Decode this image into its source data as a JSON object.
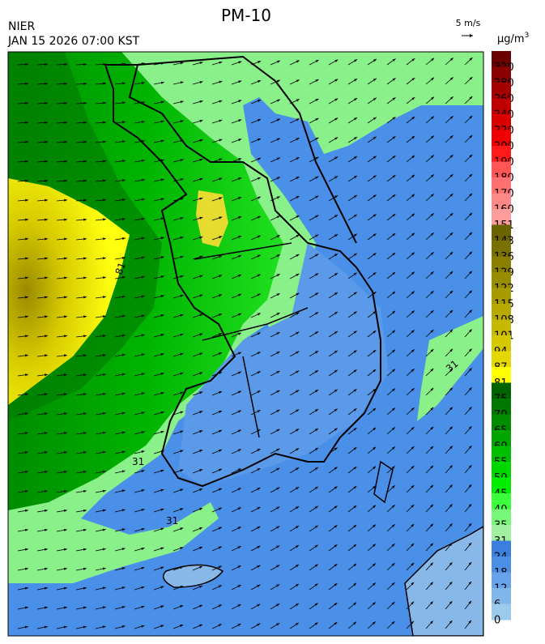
{
  "header": {
    "title": "PM-10",
    "agency": "NIER",
    "datetime": "JAN 15 2026 07:00 KST"
  },
  "wind_legend": {
    "label": "5 m/s"
  },
  "colorbar": {
    "unit": "μg/m",
    "unit_superscript": "3",
    "items": [
      {
        "label": "320",
        "color": "#6b0000"
      },
      {
        "label": "280",
        "color": "#8b0000"
      },
      {
        "label": "260",
        "color": "#a50000"
      },
      {
        "label": "240",
        "color": "#c00000"
      },
      {
        "label": "220",
        "color": "#da0000"
      },
      {
        "label": "200",
        "color": "#f00000"
      },
      {
        "label": "190",
        "color": "#ff1a1a"
      },
      {
        "label": "180",
        "color": "#ff5555"
      },
      {
        "label": "170",
        "color": "#ff7070"
      },
      {
        "label": "160",
        "color": "#ff8888"
      },
      {
        "label": "151",
        "color": "#ff9c9c"
      },
      {
        "label": "143",
        "color": "#6b6300"
      },
      {
        "label": "136",
        "color": "#7a7000"
      },
      {
        "label": "129",
        "color": "#897e00"
      },
      {
        "label": "122",
        "color": "#988c00"
      },
      {
        "label": "115",
        "color": "#a79b00"
      },
      {
        "label": "108",
        "color": "#b6a900"
      },
      {
        "label": "101",
        "color": "#c5b800"
      },
      {
        "label": "94",
        "color": "#d4c800"
      },
      {
        "label": "87",
        "color": "#e4d800"
      },
      {
        "label": "81",
        "color": "#ffff00"
      },
      {
        "label": "75",
        "color": "#006400"
      },
      {
        "label": "70",
        "color": "#007800"
      },
      {
        "label": "65",
        "color": "#008e00"
      },
      {
        "label": "60",
        "color": "#00a600"
      },
      {
        "label": "55",
        "color": "#00be00"
      },
      {
        "label": "50",
        "color": "#00d600"
      },
      {
        "label": "45",
        "color": "#00ee00"
      },
      {
        "label": "40",
        "color": "#3cff3c"
      },
      {
        "label": "35",
        "color": "#78f878"
      },
      {
        "label": "31",
        "color": "#a0f0a0"
      },
      {
        "label": "24",
        "color": "#3a7ee0"
      },
      {
        "label": "18",
        "color": "#4c8fe6"
      },
      {
        "label": "12",
        "color": "#66a3ea"
      },
      {
        "label": "6",
        "color": "#80b6ea"
      },
      {
        "label": "0",
        "color": "#9ccaea"
      }
    ]
  },
  "map": {
    "contour_labels": [
      "81",
      "31",
      "31",
      "31"
    ]
  }
}
